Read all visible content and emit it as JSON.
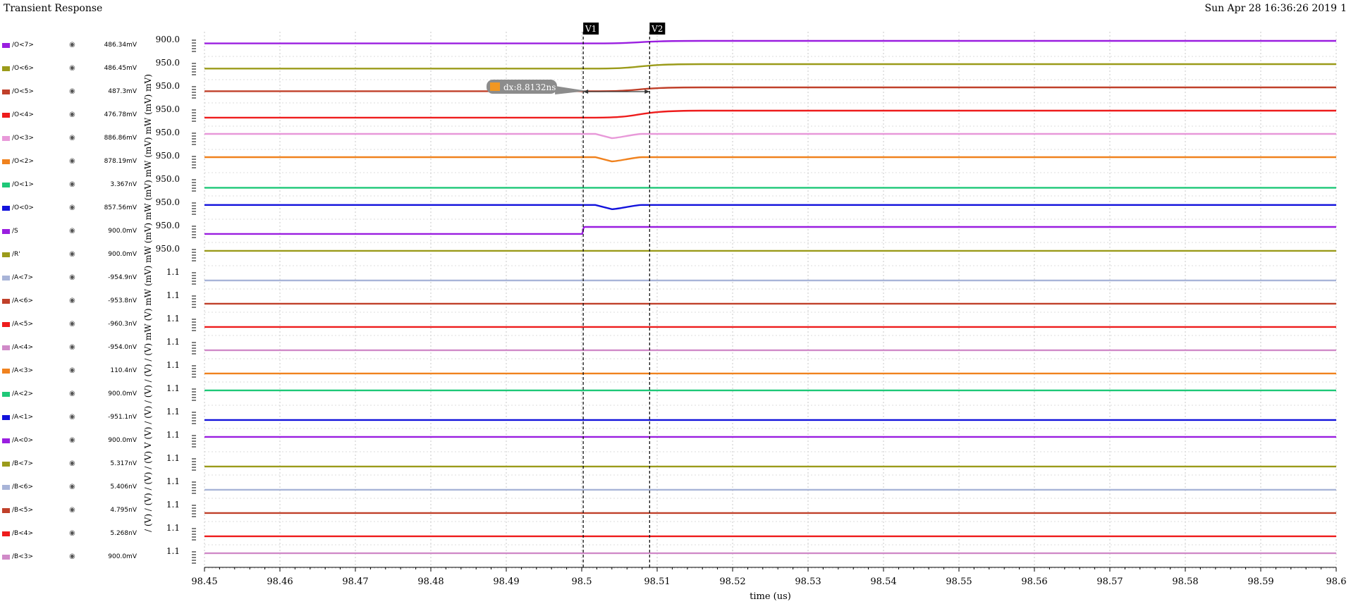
{
  "window": {
    "title": "Transient Response",
    "timestamp": "Sun Apr 28 16:36:26 2019",
    "page": "1"
  },
  "markers": {
    "v1_label": "V1",
    "v2_label": "V2",
    "v1_time": 98.5002,
    "v2_time": 98.509,
    "delta_label": "dx:8.8132ns"
  },
  "chart_data": {
    "type": "line",
    "xlabel": "time (us)",
    "xlim": [
      98.45,
      98.6
    ],
    "x_ticks": [
      "98.45",
      "98.46",
      "98.47",
      "98.48",
      "98.49",
      "98.5",
      "98.51",
      "98.52",
      "98.53",
      "98.54",
      "98.55",
      "98.56",
      "98.57",
      "98.58",
      "98.59",
      "98.6"
    ],
    "y_axis_stack_label": "/ (V) / (V) / (V) / (V) V (V) / (V) / (V) / (V) / (V) mW (V) mW (mV) mW (mV) mW (mV) mW (mV) mW (mV) mV)",
    "series": [
      {
        "name": "/O<7>",
        "value": "486.34mV",
        "color": "#9a1ee0",
        "tick": "900.0",
        "shape": "rise",
        "from": 0.2,
        "to": 0.0,
        "t0": 98.5018,
        "t1": 98.516
      },
      {
        "name": "/O<6>",
        "value": "486.45mV",
        "color": "#9b9b1a",
        "tick": "950.0",
        "shape": "rise",
        "from": 0.35,
        "to": 0.0,
        "t0": 98.5018,
        "t1": 98.516
      },
      {
        "name": "/O<5>",
        "value": "487.3mV",
        "color": "#c0402a",
        "tick": "950.0",
        "shape": "rise",
        "from": 0.3,
        "to": 0.0,
        "t0": 98.5018,
        "t1": 98.516
      },
      {
        "name": "/O<4>",
        "value": "476.78mV",
        "color": "#ee1c1c",
        "tick": "950.0",
        "shape": "rise",
        "from": 0.55,
        "to": 0.0,
        "t0": 98.5018,
        "t1": 98.516
      },
      {
        "name": "/O<3>",
        "value": "886.86mV",
        "color": "#e899d9",
        "tick": "950.0",
        "shape": "dip",
        "from": 0.0,
        "to": 0.0,
        "t0": 98.5018,
        "t1": 98.504
      },
      {
        "name": "/O<2>",
        "value": "878.19mV",
        "color": "#f0821e",
        "tick": "950.0",
        "shape": "dip",
        "from": 0.0,
        "to": 0.0,
        "t0": 98.5018,
        "t1": 98.504
      },
      {
        "name": "/O<1>",
        "value": "3.367nV",
        "color": "#1ec878",
        "tick": "950.0",
        "shape": "flat",
        "from": 0.58,
        "to": 0.58,
        "t0": 98.5,
        "t1": 98.5
      },
      {
        "name": "/O<0>",
        "value": "857.56mV",
        "color": "#1212dc",
        "tick": "950.0",
        "shape": "dip",
        "from": 0.1,
        "to": 0.1,
        "t0": 98.5018,
        "t1": 98.504
      },
      {
        "name": "/S",
        "value": "900.0mV",
        "color": "#9a1ee0",
        "tick": "950.0",
        "shape": "step",
        "from": 0.55,
        "to": 0.0,
        "t0": 98.5,
        "t1": 98.5004
      },
      {
        "name": "/R'",
        "value": "900.0mV",
        "color": "#9b9b1a",
        "tick": "950.0",
        "shape": "flat",
        "from": 0.05,
        "to": 0.05,
        "t0": 98.5,
        "t1": 98.5
      },
      {
        "name": "/A<7>",
        "value": "-954.9nV",
        "color": "#a8b4d8",
        "tick": "1.1",
        "shape": "flat",
        "from": 0.55,
        "to": 0.55,
        "t0": 98.5,
        "t1": 98.5
      },
      {
        "name": "/A<6>",
        "value": "-953.8nV",
        "color": "#c0402a",
        "tick": "1.1",
        "shape": "flat",
        "from": 0.55,
        "to": 0.55,
        "t0": 98.5,
        "t1": 98.5
      },
      {
        "name": "/A<5>",
        "value": "-960.3nV",
        "color": "#ee1c1c",
        "tick": "1.1",
        "shape": "flat",
        "from": 0.55,
        "to": 0.55,
        "t0": 98.5,
        "t1": 98.5
      },
      {
        "name": "/A<4>",
        "value": "-954.0nV",
        "color": "#d08ac8",
        "tick": "1.1",
        "shape": "flat",
        "from": 0.55,
        "to": 0.55,
        "t0": 98.5,
        "t1": 98.5
      },
      {
        "name": "/A<3>",
        "value": "110.4nV",
        "color": "#f0821e",
        "tick": "1.1",
        "shape": "flat",
        "from": 0.55,
        "to": 0.55,
        "t0": 98.5,
        "t1": 98.5
      },
      {
        "name": "/A<2>",
        "value": "900.0mV",
        "color": "#1ec878",
        "tick": "1.1",
        "shape": "flat",
        "from": 0.05,
        "to": 0.05,
        "t0": 98.5,
        "t1": 98.5
      },
      {
        "name": "/A<1>",
        "value": "-951.1nV",
        "color": "#1212dc",
        "tick": "1.1",
        "shape": "flat",
        "from": 0.55,
        "to": 0.55,
        "t0": 98.5,
        "t1": 98.5
      },
      {
        "name": "/A<0>",
        "value": "900.0mV",
        "color": "#9a1ee0",
        "tick": "1.1",
        "shape": "flat",
        "from": 0.05,
        "to": 0.05,
        "t0": 98.5,
        "t1": 98.5
      },
      {
        "name": "/B<7>",
        "value": "5.317nV",
        "color": "#9b9b1a",
        "tick": "1.1",
        "shape": "flat",
        "from": 0.55,
        "to": 0.55,
        "t0": 98.5,
        "t1": 98.5
      },
      {
        "name": "/B<6>",
        "value": "5.406nV",
        "color": "#a8b4d8",
        "tick": "1.1",
        "shape": "flat",
        "from": 0.55,
        "to": 0.55,
        "t0": 98.5,
        "t1": 98.5
      },
      {
        "name": "/B<5>",
        "value": "4.795nV",
        "color": "#c0402a",
        "tick": "1.1",
        "shape": "flat",
        "from": 0.55,
        "to": 0.55,
        "t0": 98.5,
        "t1": 98.5
      },
      {
        "name": "/B<4>",
        "value": "5.268nV",
        "color": "#ee1c1c",
        "tick": "1.1",
        "shape": "flat",
        "from": 0.55,
        "to": 0.55,
        "t0": 98.5,
        "t1": 98.5
      },
      {
        "name": "/B<3>",
        "value": "900.0mV",
        "color": "#d08ac8",
        "tick": "1.1",
        "shape": "flat",
        "from": 0.05,
        "to": 0.05,
        "t0": 98.5,
        "t1": 98.5
      }
    ]
  }
}
